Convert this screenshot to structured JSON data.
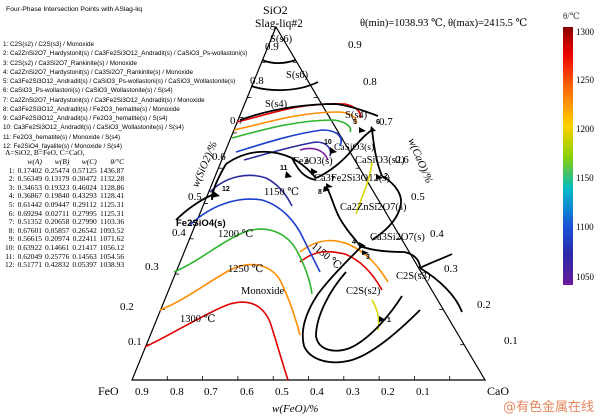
{
  "header_title": "Four-Phase Intersection Points with ASlag-liq",
  "legend": [
    "1:  C2S(s2) / C2S(s3) / Monoxide",
    "2:  Ca2ZnSi2O7_Hardystonit(s) / Ca3Fe2Si3O12_Andradit(s) / CaSiO3_Ps-wollastoni(s)",
    "3:  C2S(s2) / Ca3Si2O7_Rankinite(s) / Monoxide",
    "4:  Ca2ZnSi2O7_Hardystonit(s) / Ca3Si2O7_Rankinite(s) / Monoxide",
    "5:  Ca3Fe2Si3O12_Andradit(s) / CaSiO3_Ps-wollastoni(s) / CaSiO3_Wollastonite(s)",
    "6:  CaSiO3_Ps-wollastoni(s) / CaSiO3_Wollastonite(s) / S(s4)",
    "7:  Ca2ZnSi2O7_Hardystonit(s) / Ca3Fe2Si3O12_Andradit(s) / Monoxide",
    "8:  Ca3Fe2Si3O12_Andradit(s) / Fe2O3_hematite(s) / Monoxide",
    "9:  Ca3Fe2Si3O12_Andradit(s) / Fe2O3_hematite(s) / S(s4)",
    "10: Ca3Fe2Si3O12_Andradit(s) / CaSiO3_Wollastonite(s) / S(s4)",
    "11: Fe2O3_hematite(s) / Monoxide / S(s4)",
    "12: Fe2SiO4_fayalite(s) / Monoxide / S(s4)"
  ],
  "table": {
    "definition": "A=SiO2, B=FeO, C=CaO,",
    "headers": [
      "",
      "w(A)",
      "w(B)",
      "w(C)",
      "θ/°C"
    ],
    "rows": [
      [
        "1:",
        "0.17402",
        "0.25474",
        "0.57125",
        "1436.87"
      ],
      [
        "2:",
        "0.56349",
        "0.13179",
        "0.30472",
        "1132.28"
      ],
      [
        "3:",
        "0.34653",
        "0.19323",
        "0.46024",
        "1128.86"
      ],
      [
        "4:",
        "0.36867",
        "0.19840",
        "0.43293",
        "1128.41"
      ],
      [
        "5:",
        "0.61442",
        "0.09447",
        "0.29112",
        "1125.31"
      ],
      [
        "6:",
        "0.69294",
        "0.02711",
        "0.27995",
        "1125.31"
      ],
      [
        "7:",
        "0.51352",
        "0.20658",
        "0.27990",
        "1103.36"
      ],
      [
        "8:",
        "0.67601",
        "0.05857",
        "0.26542",
        "1093.52"
      ],
      [
        "9:",
        "0.56615",
        "0.20974",
        "0.22411",
        "1071.62"
      ],
      [
        "10:",
        "0.63922",
        "0.14661",
        "0.21417",
        "1056.12"
      ],
      [
        "11:",
        "0.62049",
        "0.25776",
        "0.14563",
        "1054.56"
      ],
      [
        "12:",
        "0.51771",
        "0.42832",
        "0.05397",
        "1038.93"
      ]
    ]
  },
  "theta_range_text": "θ(min)=1038.93 ℃, θ(max)=2415.5 ℃",
  "colorbar": {
    "title": "θ/℃",
    "ticks": [
      "1300",
      "1250",
      "1200",
      "1150",
      "1100",
      "1050"
    ]
  },
  "vertices": {
    "top": "SiO2",
    "left": "FeO",
    "right": "CaO"
  },
  "axis_titles": {
    "left": "w(SiO2)/%",
    "right": "w(CaO)/%",
    "bottom": "w(FeO)/%"
  },
  "ticks": [
    "0.1",
    "0.2",
    "0.3",
    "0.4",
    "0.5",
    "0.6",
    "0.7",
    "0.8",
    "0.9"
  ],
  "phase_labels": [
    "Slag-liq#2",
    "S(s6)",
    "S(s6)",
    "S(s4)",
    "S(s4)",
    "CaSiO3(s)",
    "CaSiO3(s2)",
    "Fe2O3(s)",
    "Ca3Fe2Si3O12(s)",
    "Ca2ZnSi2O7(s)",
    "Ca3Si2O7(s)",
    "C2S(s3)",
    "C2S(s2)",
    "Fe2SiO4(s)",
    "Monoxide"
  ],
  "isotherm_labels": [
    "1150 ℃",
    "1200 ℃",
    "1250 ℃",
    "1150 ℃",
    "1300 ℃"
  ],
  "point_labels": [
    "12",
    "11",
    "9",
    "10",
    "5",
    "6",
    "8",
    "7",
    "2",
    "4",
    "3",
    "1"
  ],
  "colors": {
    "c1300": "#e00000",
    "c1250": "#ff8c00",
    "c1200": "#2db52d",
    "c1150": "#1c3fd0",
    "c1100": "#2a2aa0",
    "boundary": "#000000",
    "yellow": "#d8d800"
  },
  "watermark": "@有色金属在线"
}
